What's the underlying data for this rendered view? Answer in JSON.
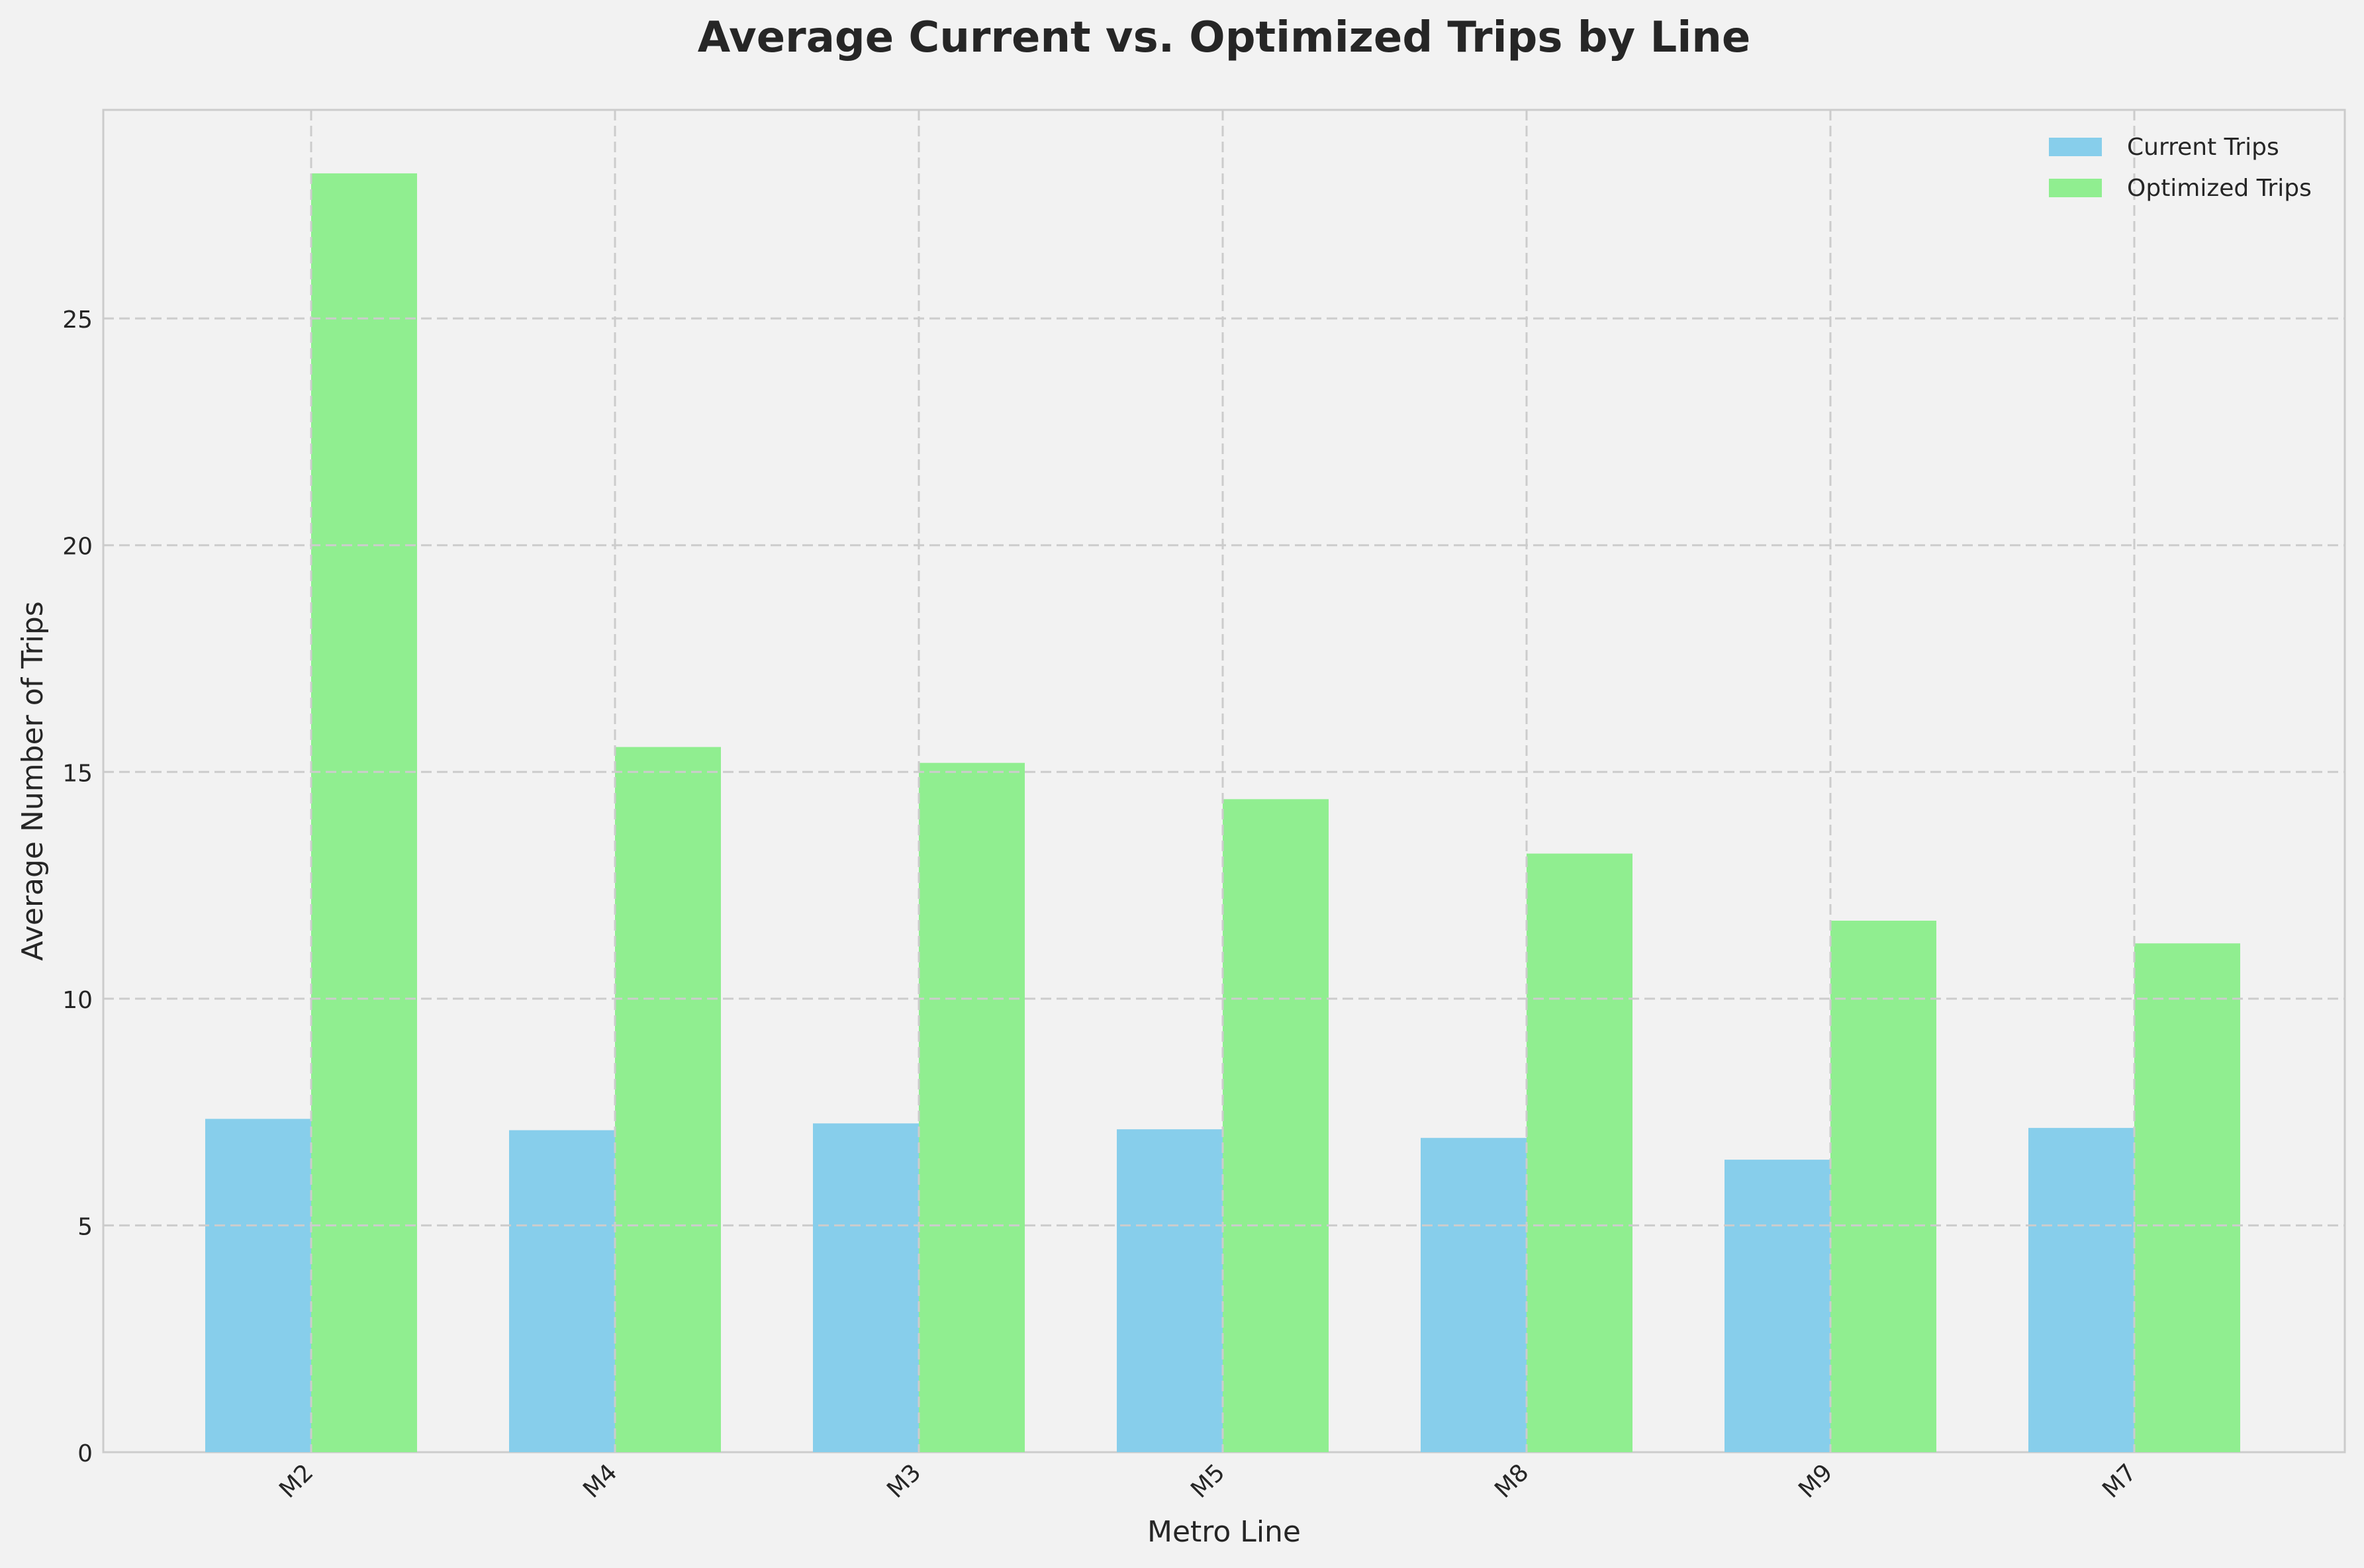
{
  "chart_data": {
    "type": "bar",
    "title": "Average Current vs. Optimized Trips by Line",
    "xlabel": "Metro Line",
    "ylabel": "Average Number of Trips",
    "categories": [
      "M2",
      "M4",
      "M3",
      "M5",
      "M8",
      "M9",
      "M7"
    ],
    "series": [
      {
        "name": "Current Trips",
        "color": "#87ceeb",
        "values": [
          7.35,
          7.1,
          7.25,
          7.12,
          6.93,
          6.45,
          7.15
        ]
      },
      {
        "name": "Optimized Trips",
        "color": "#90ee90",
        "values": [
          28.2,
          15.55,
          15.2,
          14.4,
          13.2,
          11.72,
          11.22
        ]
      }
    ],
    "ylim": [
      0,
      29.6
    ],
    "yticks": [
      0,
      5,
      10,
      15,
      20,
      25
    ],
    "grid": true,
    "legend": "top-right"
  }
}
